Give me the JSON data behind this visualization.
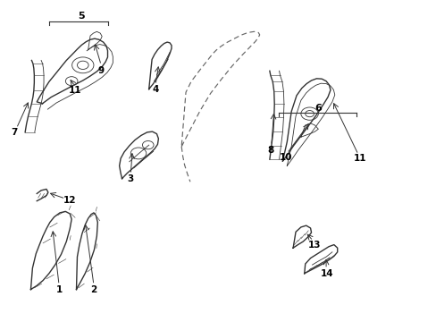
{
  "background_color": "#ffffff",
  "line_color": "#333333",
  "label_color": "#000000",
  "lw_main": 1.0,
  "lw_thin": 0.6,
  "label_fontsize": 7.5
}
